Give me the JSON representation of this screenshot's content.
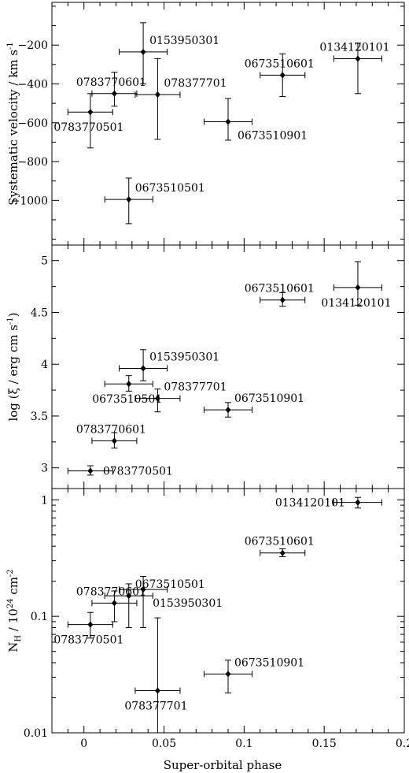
{
  "chart_data": [
    {
      "type": "scatter",
      "panel": "top",
      "ylabel": "Systematic velocity / km s",
      "ylabel_sup": "-1",
      "ylim": [
        -1230,
        20
      ],
      "yscale": "linear",
      "yticks": [
        {
          "value": -200,
          "label": "−200"
        },
        {
          "value": -400,
          "label": "−400"
        },
        {
          "value": -600,
          "label": "−600"
        },
        {
          "value": -800,
          "label": "−800"
        },
        {
          "value": -1000,
          "label": "−1000"
        }
      ],
      "points": [
        {
          "label": "0783770501",
          "x": 0.004,
          "xerr": 0.014,
          "y": -545,
          "yerr_low": 185,
          "yerr_high": 95,
          "label_pos": "below-left"
        },
        {
          "label": "0783770601",
          "x": 0.019,
          "xerr": 0.014,
          "y": -450,
          "yerr_low": 65,
          "yerr_high": 110,
          "label_pos": "above-left"
        },
        {
          "label": "0153950301",
          "x": 0.037,
          "xerr": 0.015,
          "y": -235,
          "yerr_low": 165,
          "yerr_high": 150,
          "label_pos": "above-right"
        },
        {
          "label": "078377701",
          "x": 0.046,
          "xerr": 0.014,
          "y": -455,
          "yerr_low": 230,
          "yerr_high": 185,
          "label_pos": "above-right"
        },
        {
          "label": "0673510501",
          "x": 0.028,
          "xerr": 0.015,
          "y": -995,
          "yerr_low": 125,
          "yerr_high": 110,
          "label_pos": "above-right"
        },
        {
          "label": "0673510901",
          "x": 0.09,
          "xerr": 0.015,
          "y": -595,
          "yerr_low": 95,
          "yerr_high": 120,
          "label_pos": "below-right"
        },
        {
          "label": "0673510601",
          "x": 0.124,
          "xerr": 0.014,
          "y": -355,
          "yerr_low": 110,
          "yerr_high": 110,
          "label_pos": "above-left"
        },
        {
          "label": "0134120101",
          "x": 0.171,
          "xerr": 0.015,
          "y": -270,
          "yerr_low": 180,
          "yerr_high": 80,
          "label_pos": "above-left"
        }
      ]
    },
    {
      "type": "scatter",
      "panel": "middle",
      "ylabel": "log (ξ / erg cm s",
      "ylabel_sup": "-1",
      "ylabel_suffix": ")",
      "ylim": [
        2.8,
        5.15
      ],
      "yscale": "linear",
      "yticks": [
        {
          "value": 3,
          "label": "3"
        },
        {
          "value": 3.5,
          "label": "3.5"
        },
        {
          "value": 4,
          "label": "4"
        },
        {
          "value": 4.5,
          "label": "4.5"
        },
        {
          "value": 5,
          "label": "5"
        }
      ],
      "points": [
        {
          "label": "0783770501",
          "x": 0.004,
          "xerr": 0.014,
          "y": 2.97,
          "yerr_low": 0.04,
          "yerr_high": 0.05,
          "label_pos": "right"
        },
        {
          "label": "0783770601",
          "x": 0.019,
          "xerr": 0.014,
          "y": 3.26,
          "yerr_low": 0.07,
          "yerr_high": 0.08,
          "label_pos": "above-left"
        },
        {
          "label": "0673510501",
          "x": 0.028,
          "xerr": 0.015,
          "y": 3.81,
          "yerr_low": 0.07,
          "yerr_high": 0.08,
          "label_pos": "below-left"
        },
        {
          "label": "0153950301",
          "x": 0.037,
          "xerr": 0.015,
          "y": 3.96,
          "yerr_low": 0.12,
          "yerr_high": 0.18,
          "label_pos": "above-right"
        },
        {
          "label": "078377701",
          "x": 0.046,
          "xerr": 0.014,
          "y": 3.67,
          "yerr_low": 0.13,
          "yerr_high": 0.09,
          "label_pos": "above-right"
        },
        {
          "label": "0673510901",
          "x": 0.09,
          "xerr": 0.015,
          "y": 3.56,
          "yerr_low": 0.07,
          "yerr_high": 0.07,
          "label_pos": "above-right"
        },
        {
          "label": "0673510601",
          "x": 0.124,
          "xerr": 0.014,
          "y": 4.62,
          "yerr_low": 0.06,
          "yerr_high": 0.07,
          "label_pos": "above-left"
        },
        {
          "label": "0134120101",
          "x": 0.171,
          "xerr": 0.015,
          "y": 4.74,
          "yerr_low": 0.17,
          "yerr_high": 0.25,
          "label_pos": "below-left"
        }
      ]
    },
    {
      "type": "scatter",
      "panel": "bottom",
      "ylabel": "N",
      "ylabel_sub": "H",
      "ylabel_mid": " / 10",
      "ylabel_sup": "24",
      "ylabel_suffix": " cm",
      "ylabel_sup2": "-2",
      "ylim": [
        0.01,
        1.25
      ],
      "yscale": "log",
      "yticks": [
        {
          "value": 0.01,
          "label": "0.01"
        },
        {
          "value": 0.1,
          "label": "0.1"
        },
        {
          "value": 1,
          "label": "1"
        }
      ],
      "points": [
        {
          "label": "0783770501",
          "x": 0.004,
          "xerr": 0.014,
          "y": 0.085,
          "yerr_low": 0.02,
          "yerr_high": 0.023,
          "label_pos": "below-left"
        },
        {
          "label": "0783770601",
          "x": 0.019,
          "xerr": 0.014,
          "y": 0.13,
          "yerr_low": 0.04,
          "yerr_high": 0.035,
          "label_pos": "above-left"
        },
        {
          "label": "0673510501",
          "x": 0.028,
          "xerr": 0.015,
          "y": 0.15,
          "yerr_low": 0.07,
          "yerr_high": 0.04,
          "label_pos": "above-right"
        },
        {
          "label": "0153950301",
          "x": 0.037,
          "xerr": 0.015,
          "y": 0.17,
          "yerr_low": 0.09,
          "yerr_high": 0.05,
          "label_pos": "below-right"
        },
        {
          "label": "078377701",
          "x": 0.046,
          "xerr": 0.014,
          "y": 0.023,
          "yerr_low": 0.015,
          "yerr_high": 0.074,
          "label_pos": "below-left"
        },
        {
          "label": "0673510901",
          "x": 0.09,
          "xerr": 0.015,
          "y": 0.032,
          "yerr_low": 0.01,
          "yerr_high": 0.01,
          "label_pos": "above-right"
        },
        {
          "label": "0673510601",
          "x": 0.124,
          "xerr": 0.014,
          "y": 0.35,
          "yerr_low": 0.025,
          "yerr_high": 0.03,
          "label_pos": "above-left"
        },
        {
          "label": "0134120101",
          "x": 0.171,
          "xerr": 0.015,
          "y": 0.95,
          "yerr_low": 0.1,
          "yerr_high": 0.1,
          "label_pos": "left"
        }
      ]
    }
  ],
  "shared_x_axis": {
    "xlabel": "Super-orbital phase",
    "xlim": [
      -0.02,
      0.2
    ],
    "xticks": [
      {
        "value": 0,
        "label": "0"
      },
      {
        "value": 0.05,
        "label": "0.05"
      },
      {
        "value": 0.1,
        "label": "0.1"
      },
      {
        "value": 0.15,
        "label": "0.15"
      },
      {
        "value": 0.2,
        "label": "0.2"
      }
    ]
  },
  "style": {
    "marker_color": "#000000",
    "background": "#ffffff"
  }
}
